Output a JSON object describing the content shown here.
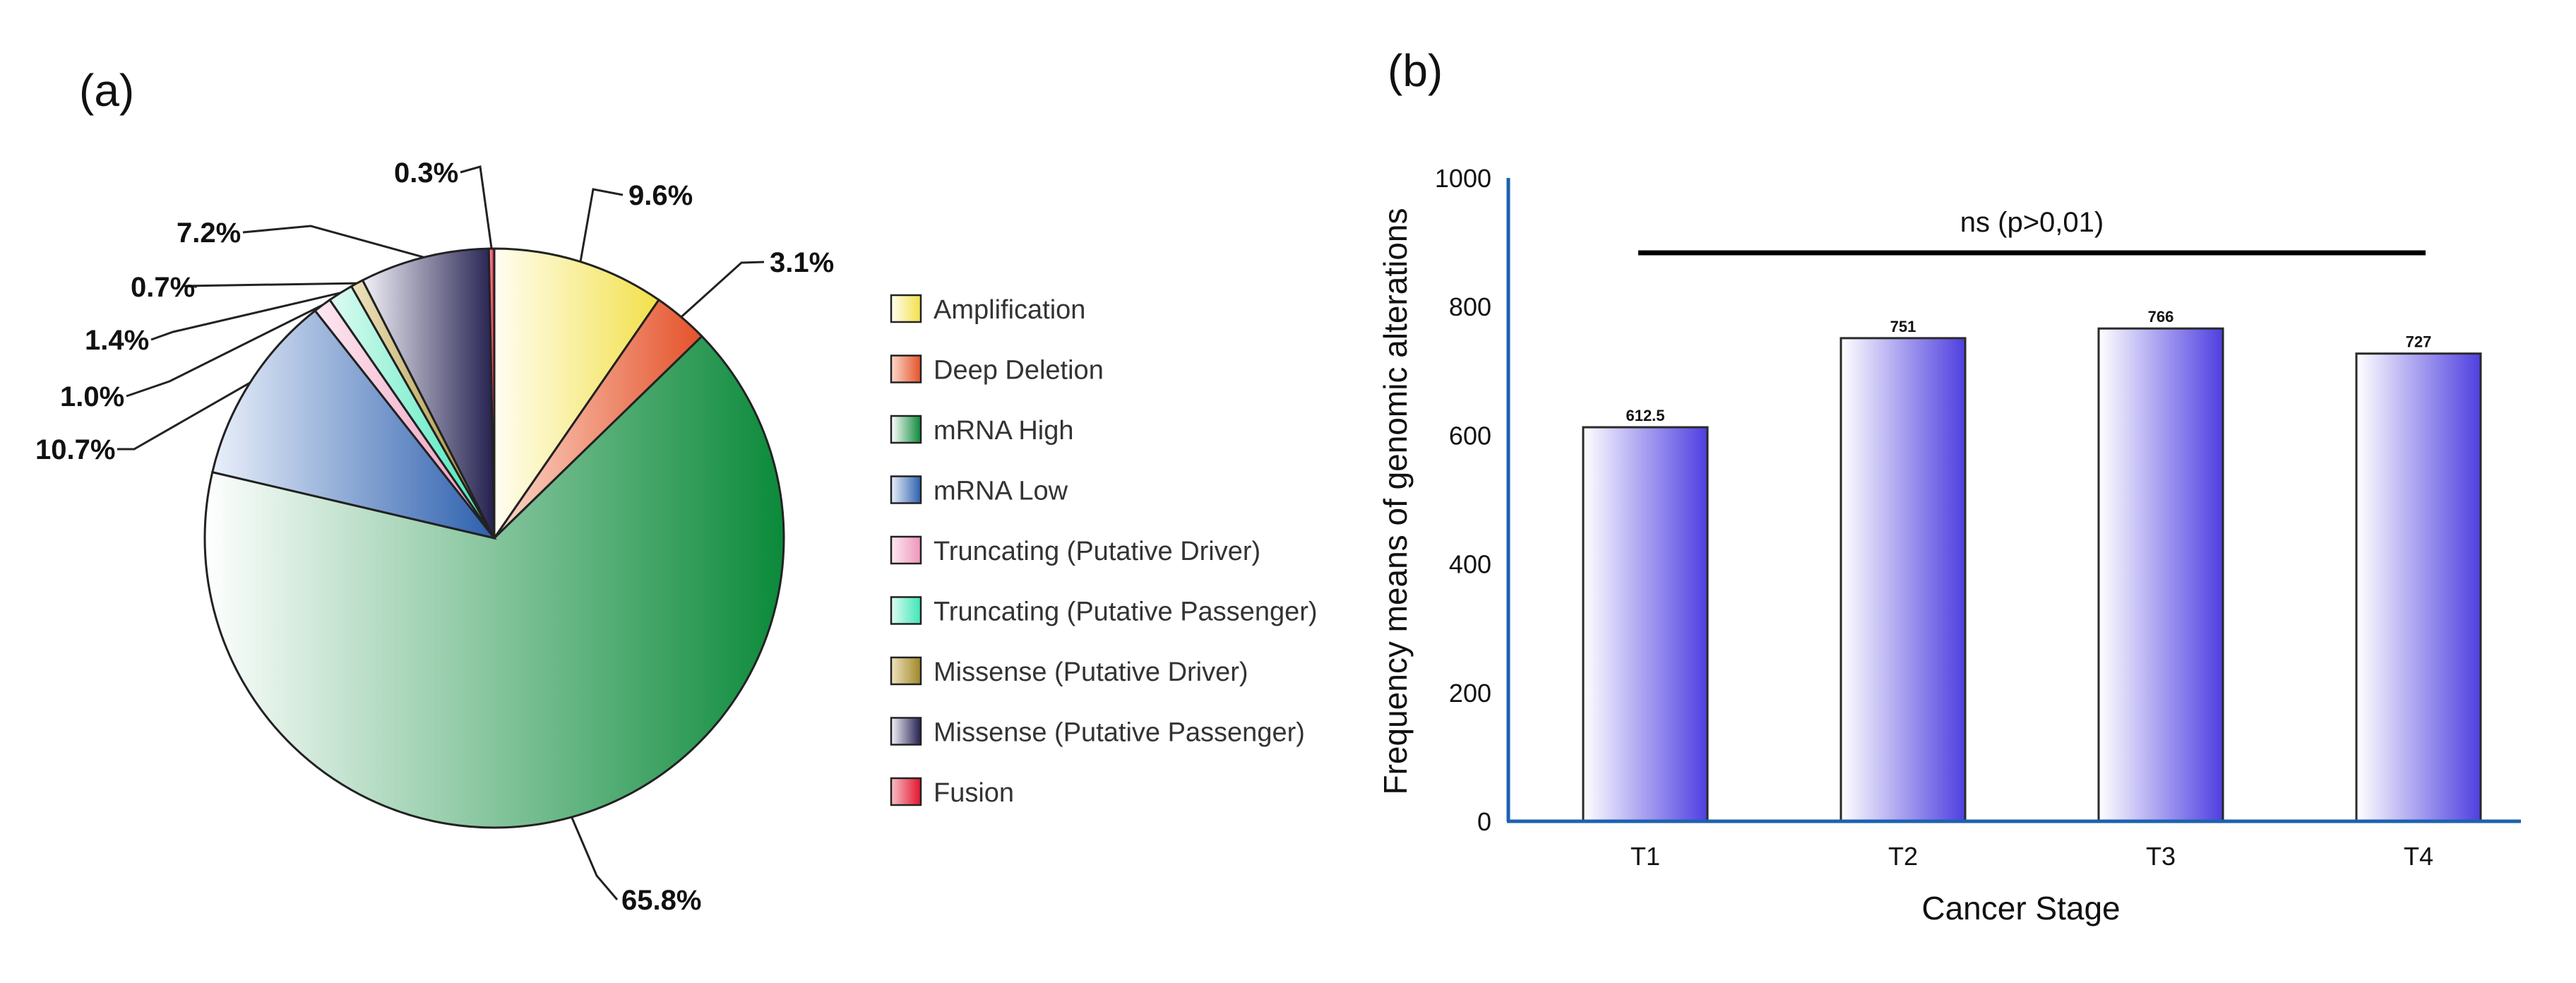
{
  "panel_a": {
    "label": "(a)"
  },
  "panel_b": {
    "label": "(b)"
  },
  "chart_data": [
    {
      "type": "pie",
      "title": "",
      "slices": [
        {
          "name": "Amplification",
          "value": 9.6,
          "label": "9.6%",
          "color": "#f2e04a",
          "light": "#fffef2"
        },
        {
          "name": "Deep Deletion",
          "value": 3.1,
          "label": "3.1%",
          "color": "#e5522a",
          "light": "#fbd9cb"
        },
        {
          "name": "mRNA High",
          "value": 65.8,
          "label": "65.8%",
          "color": "#0b8a3a",
          "light": "#ffffff"
        },
        {
          "name": "mRNA Low",
          "value": 10.7,
          "label": "10.7%",
          "color": "#2c5fae",
          "light": "#eaf0fa"
        },
        {
          "name": "Truncating (Putative Driver)",
          "value": 1.0,
          "label": "1.0%",
          "color": "#ee95bb",
          "light": "#fde9f1"
        },
        {
          "name": "Truncating (Putative Passenger)",
          "value": 1.4,
          "label": "1.4%",
          "color": "#3ee6b6",
          "light": "#dffbf2"
        },
        {
          "name": "Missense (Putative Driver)",
          "value": 0.7,
          "label": "0.7%",
          "color": "#a08728",
          "light": "#efe3bf"
        },
        {
          "name": "Missense (Putative Passenger)",
          "value": 7.2,
          "label": "7.2%",
          "color": "#23204f",
          "light": "#f2f1f8"
        },
        {
          "name": "Fusion",
          "value": 0.3,
          "label": "0.3%",
          "color": "#e3132c",
          "light": "#f7c0c7"
        }
      ],
      "legend_position": "right"
    },
    {
      "type": "bar",
      "title": "",
      "categories": [
        "T1",
        "T2",
        "T3",
        "T4"
      ],
      "values": [
        612.5,
        751,
        766,
        727
      ],
      "value_labels": [
        "612.5",
        "751",
        "766",
        "727"
      ],
      "xlabel": "Cancer Stage",
      "ylabel": "Frequency means of genomic alterations",
      "ylim": [
        0,
        1000
      ],
      "yticks": [
        0,
        200,
        400,
        600,
        800,
        1000
      ],
      "significance": {
        "text": "ns  (p>0,01)",
        "from": "T1",
        "to": "T4"
      },
      "bar_color": "#4f3fe0",
      "bar_light": "#ffffff",
      "axis_color": "#1b62b0"
    }
  ]
}
